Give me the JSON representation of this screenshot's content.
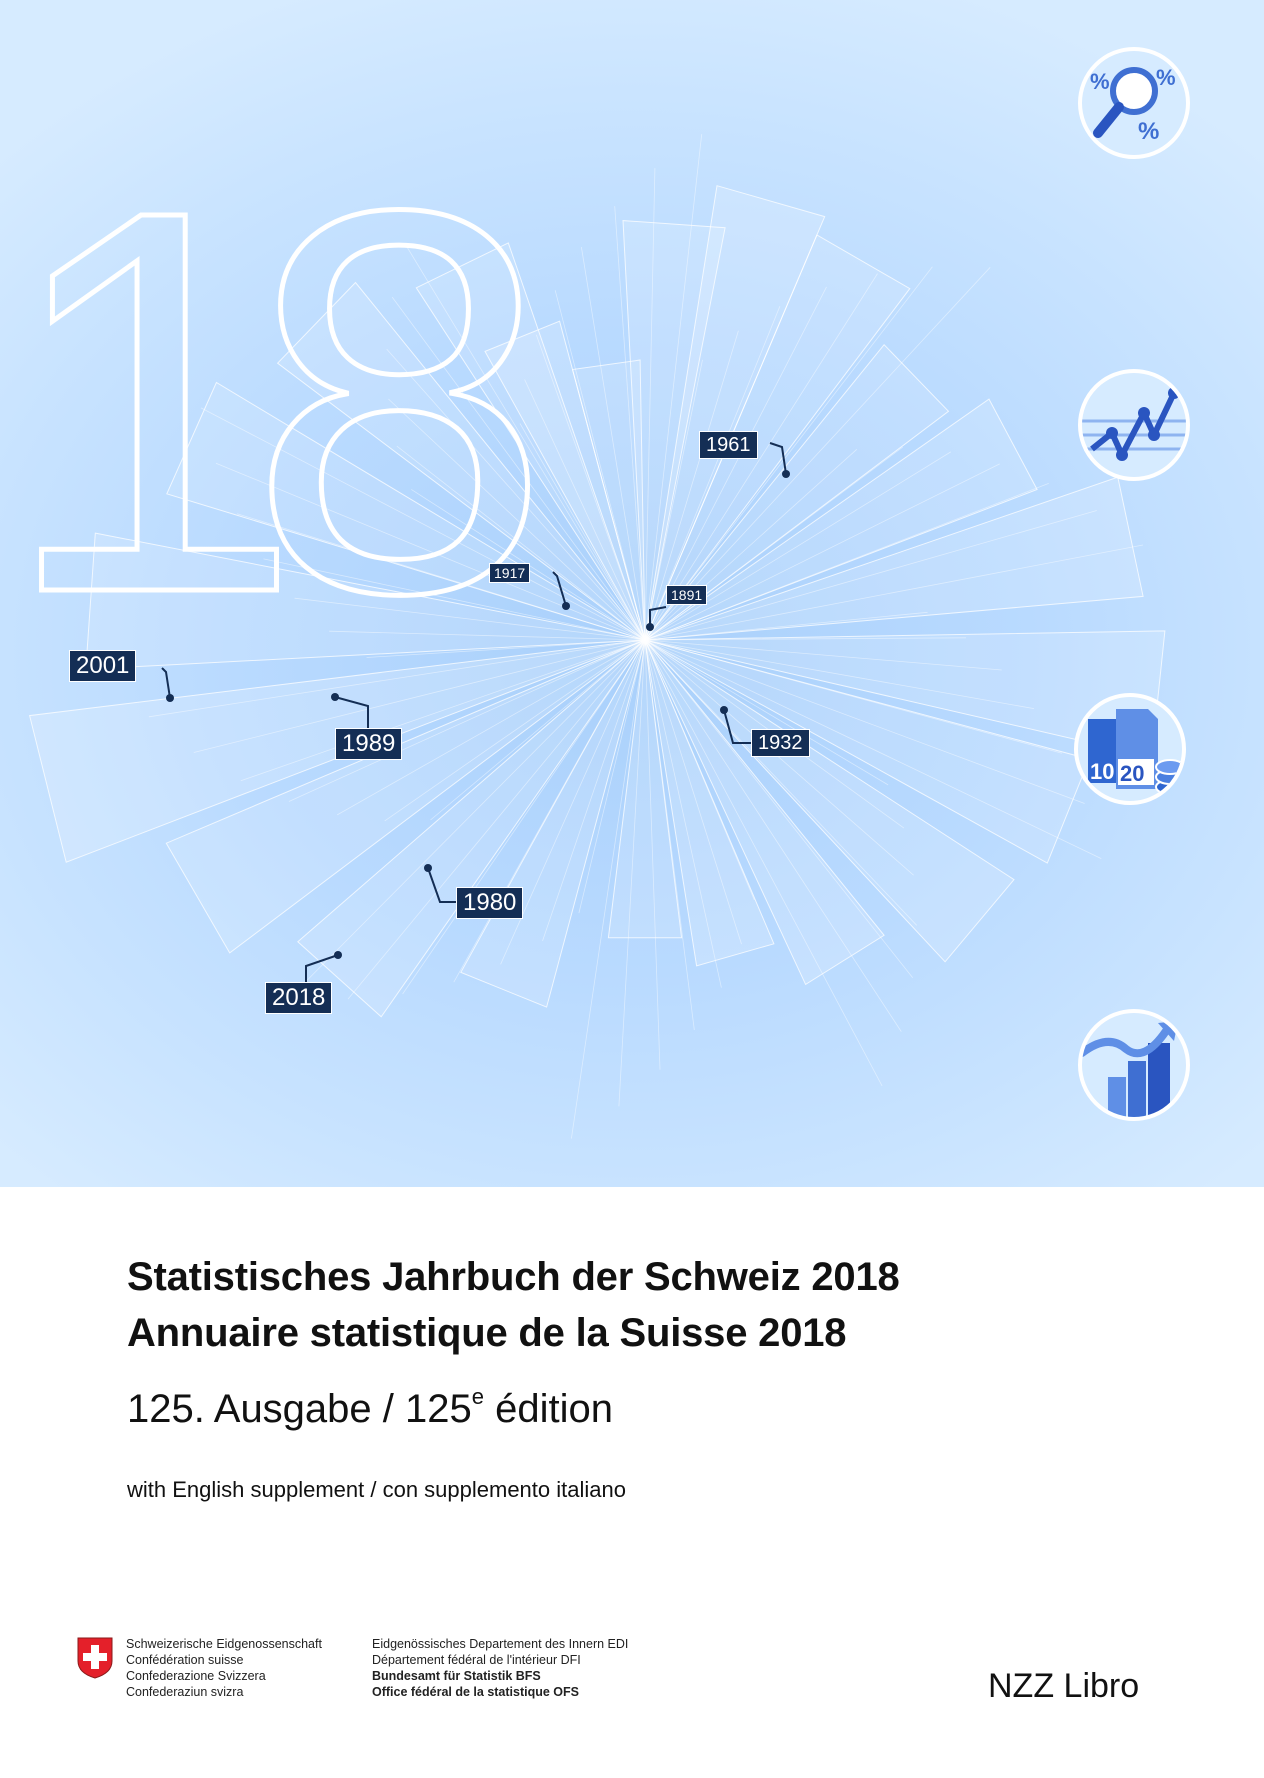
{
  "cover": {
    "big_number": "18",
    "year_labels": [
      "1961",
      "1917",
      "1891",
      "2001",
      "1989",
      "1932",
      "1980",
      "2018"
    ],
    "accent_color": "#142e55",
    "icons": [
      "magnifier-percent-icon",
      "line-chart-icon",
      "documents-coins-icon",
      "bar-chart-arrow-icon"
    ],
    "icon_texts": {
      "percent_a": "%",
      "percent_b": "%",
      "doc_a": "10",
      "doc_b": "20"
    }
  },
  "titles": {
    "line1": "Statistisches Jahrbuch der Schweiz 2018",
    "line2": "Annuaire statistique de la Suisse 2018",
    "edition_prefix": "125. Ausgabe / 125",
    "edition_sup": "e",
    "edition_suffix": " édition",
    "supplement": "with English supplement / con supplemento italiano"
  },
  "footer": {
    "confederation": [
      "Schweizerische Eidgenossenschaft",
      "Confédération suisse",
      "Confederazione Svizzera",
      "Confederaziun svizra"
    ],
    "department": [
      "Eidgenössisches Departement des Innern EDI",
      "Département fédéral de l'intérieur DFI"
    ],
    "office": [
      "Bundesamt für Statistik BFS",
      "Office fédéral de la statistique OFS"
    ],
    "publisher": "NZZ Libro"
  }
}
